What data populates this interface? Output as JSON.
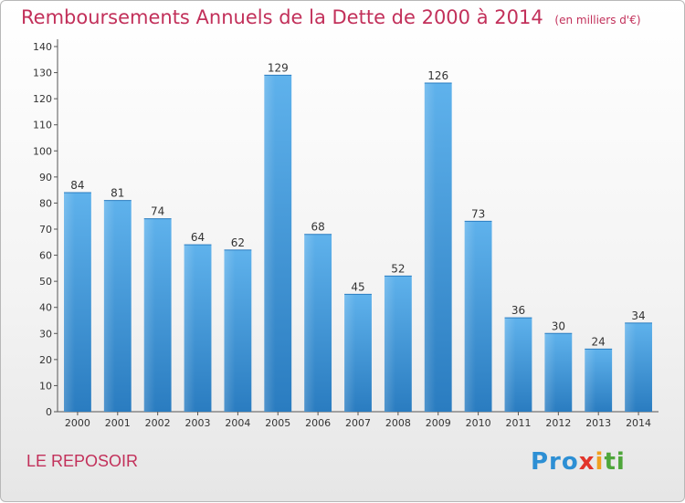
{
  "chart_data": {
    "type": "bar",
    "title": "Remboursements Annuels de la Dette de 2000 à 2014",
    "subtitle": "(en milliers d'€)",
    "categories": [
      "2000",
      "2001",
      "2002",
      "2003",
      "2004",
      "2005",
      "2006",
      "2007",
      "2008",
      "2009",
      "2010",
      "2011",
      "2012",
      "2013",
      "2014"
    ],
    "values": [
      84,
      81,
      74,
      64,
      62,
      129,
      68,
      45,
      52,
      126,
      73,
      36,
      30,
      24,
      34
    ],
    "ylim": [
      0,
      140
    ],
    "yticks": [
      0,
      10,
      20,
      30,
      40,
      50,
      60,
      70,
      80,
      90,
      100,
      110,
      120,
      130,
      140
    ],
    "grid": false,
    "bar_color": "#3d95d8"
  },
  "footer": {
    "place": "LE REPOSOIR",
    "logo": [
      "Pro",
      "x",
      "i",
      "ti"
    ]
  },
  "colors": {
    "title": "#c2305a",
    "axis_text": "#333333"
  }
}
